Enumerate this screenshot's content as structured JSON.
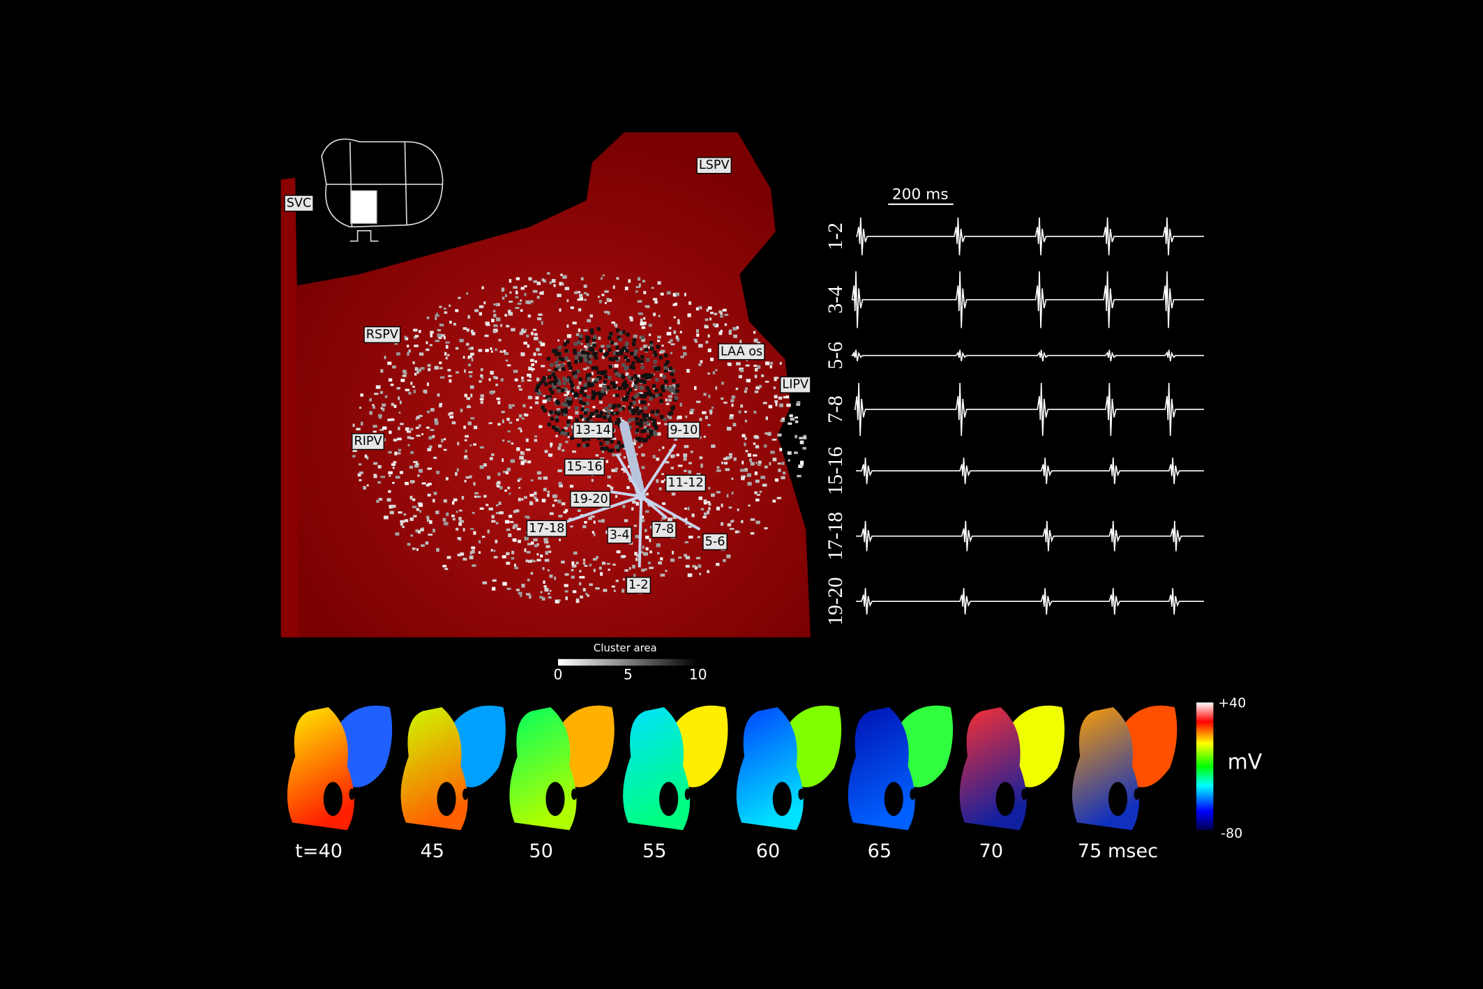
{
  "anatomy_labels": [
    "SVC",
    "LSPV",
    "RSPV",
    "LAA os",
    "LIPV",
    "RIPV"
  ],
  "electrode_labels": [
    "13-14",
    "9-10",
    "15-16",
    "11-12",
    "19-20",
    "17-18",
    "3-4",
    "7-8",
    "5-6",
    "1-2"
  ],
  "cluster_legend": {
    "title": "Cluster area",
    "ticks": [
      0,
      5,
      10
    ]
  },
  "scale_bar": "200 ms",
  "trace_labels": [
    "1-2",
    "3-4",
    "5-6",
    "7-8",
    "15-16",
    "17-18",
    "19-20"
  ],
  "time_labels": [
    "t=40",
    "45",
    "50",
    "55",
    "60",
    "65",
    "70",
    "75 msec"
  ],
  "voltage_colorbar": {
    "max": "+40",
    "unit": "mV",
    "min": "-80"
  }
}
